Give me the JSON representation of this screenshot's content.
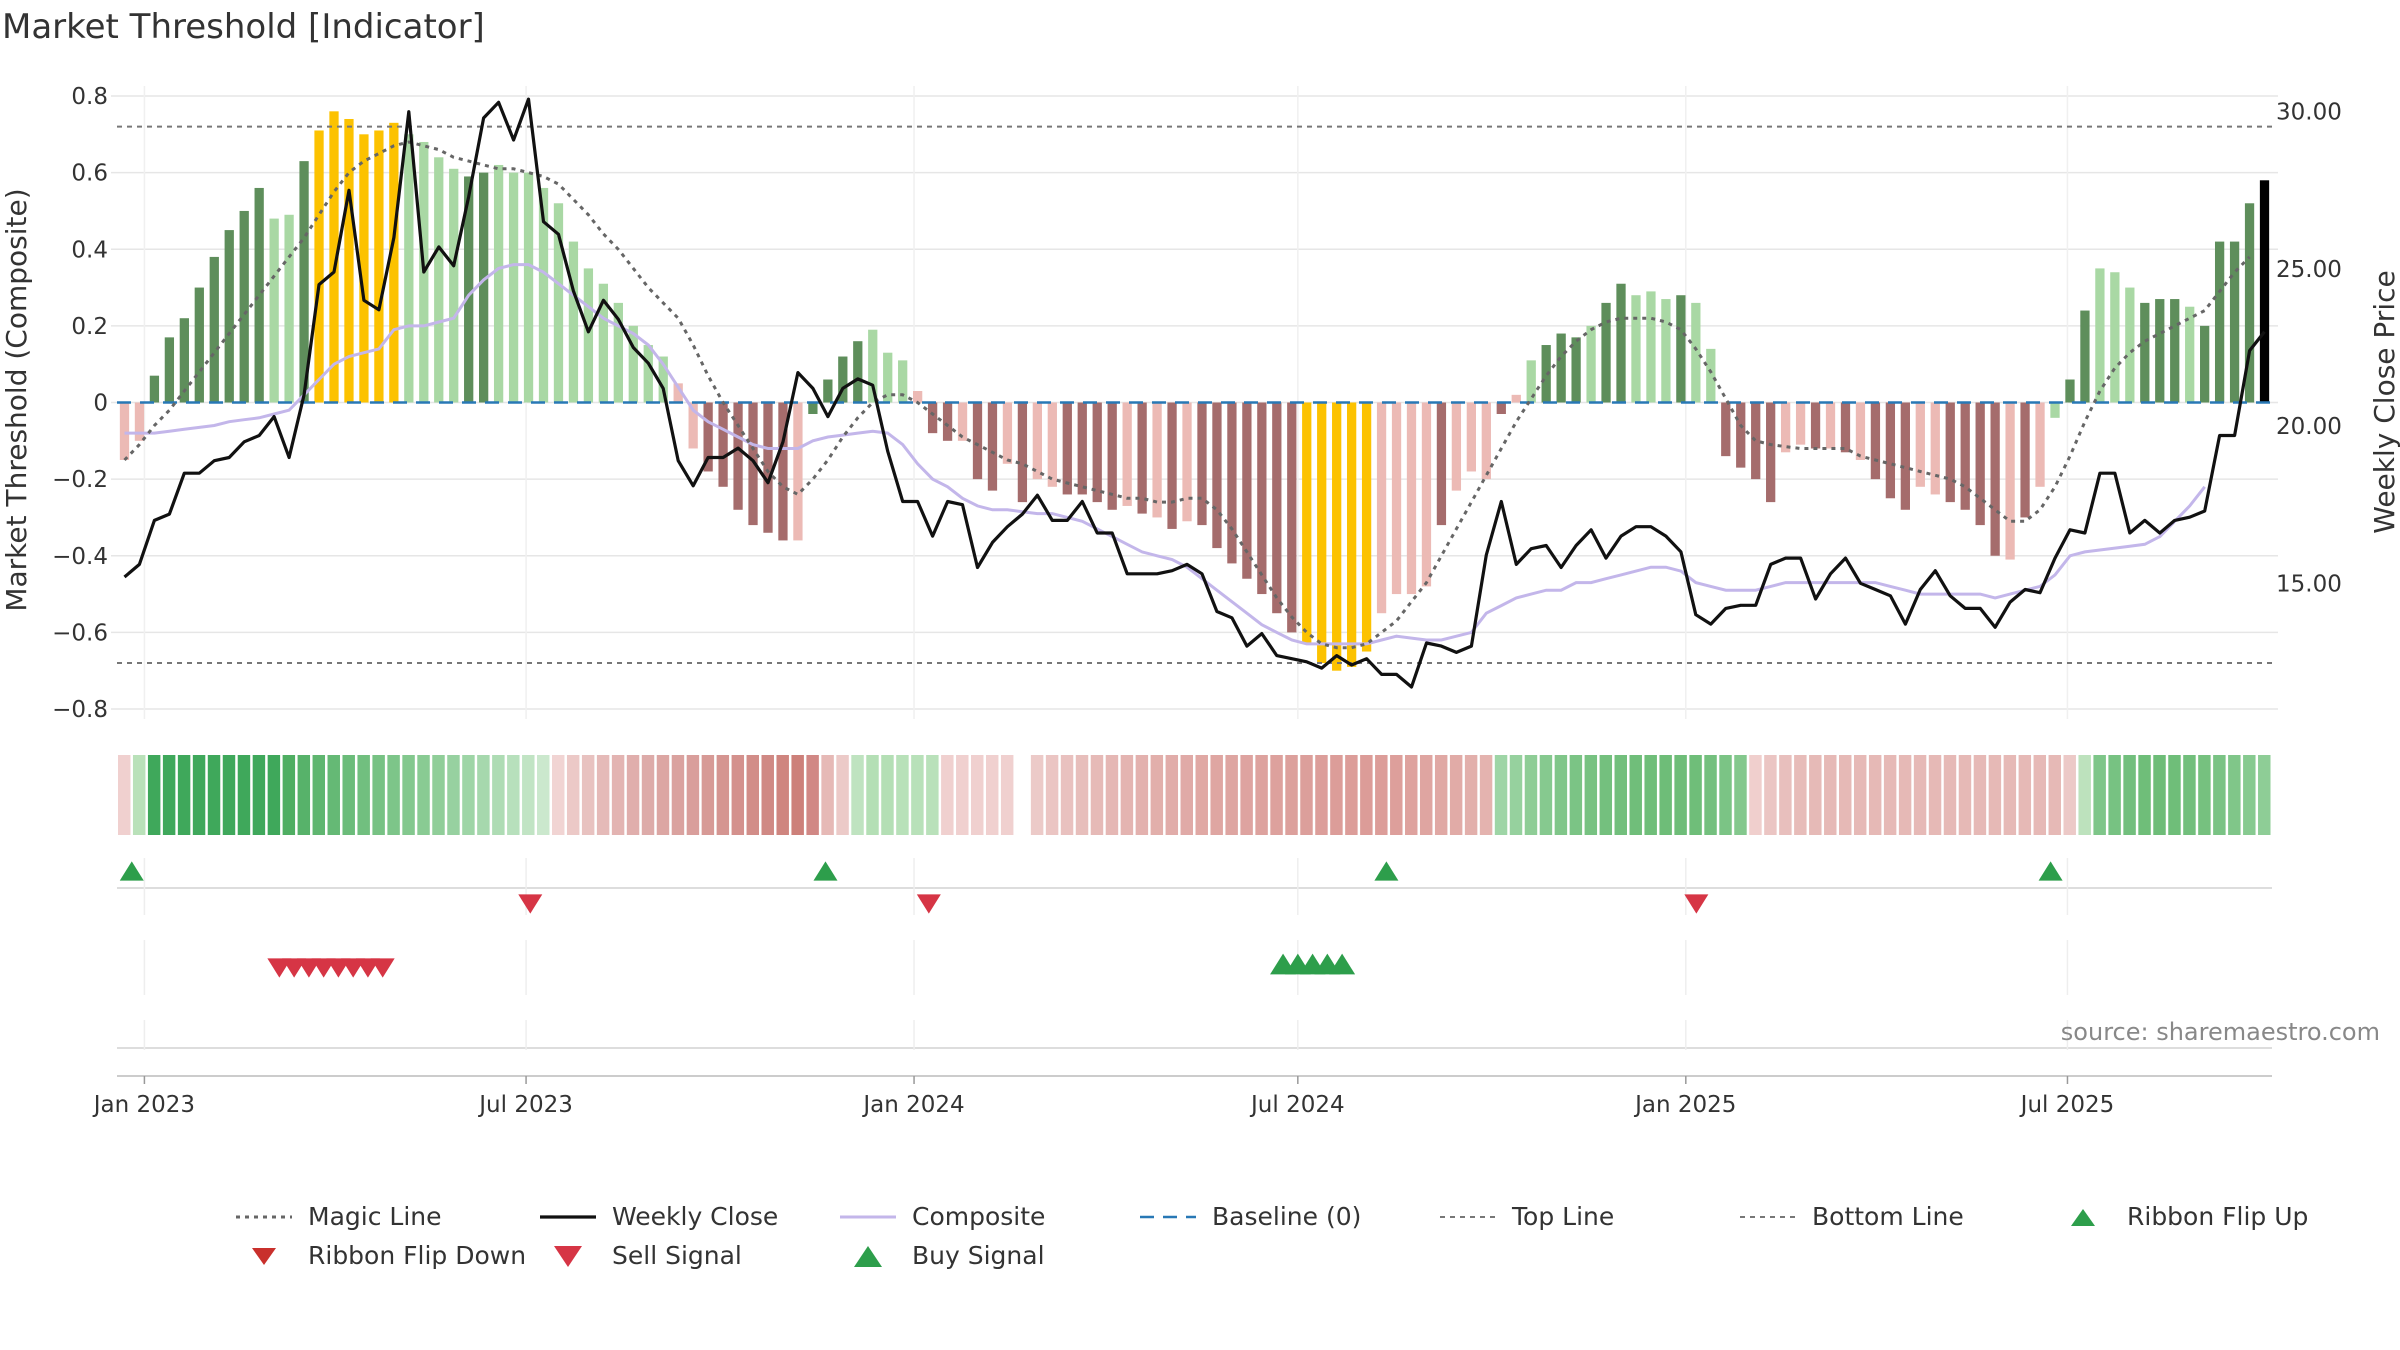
{
  "title": "Market Threshold [Indicator]",
  "source": "source: sharemaestro.com",
  "colors": {
    "dark_green": "#5e8e5b",
    "light_green": "#a9d8a4",
    "dark_red": "#a56c6c",
    "light_red": "#ecbab5",
    "gold": "#fcc200",
    "composite": "#c3b6ea",
    "weekly_close": "#111111",
    "magic_line": "#666666",
    "baseline": "#2878b5",
    "top_bottom_line": "#777777",
    "buy": "#2d9e4b",
    "sell": "#d63545"
  },
  "chart_data": {
    "type": "bar",
    "x_axis": {
      "type": "date",
      "range": [
        "2022-12-19",
        "2025-10-06"
      ],
      "ticks": [
        {
          "date": "2023-01-01",
          "label": "Jan 2023"
        },
        {
          "date": "2023-07-01",
          "label": "Jul 2023"
        },
        {
          "date": "2024-01-01",
          "label": "Jan 2024"
        },
        {
          "date": "2024-07-01",
          "label": "Jul 2024"
        },
        {
          "date": "2025-01-01",
          "label": "Jan 2025"
        },
        {
          "date": "2025-07-01",
          "label": "Jul 2025"
        }
      ]
    },
    "y_left": {
      "label": "Market Threshold (Composite)",
      "range": [
        -0.8,
        0.8
      ],
      "ticks": [
        {
          "v": 0.8,
          "label": "0.8"
        },
        {
          "v": 0.6,
          "label": "0.6"
        },
        {
          "v": 0.4,
          "label": "0.4"
        },
        {
          "v": 0.2,
          "label": "0.2"
        },
        {
          "v": 0,
          "label": "0"
        },
        {
          "v": -0.2,
          "label": "−0.2"
        },
        {
          "v": -0.4,
          "label": "−0.4"
        },
        {
          "v": -0.6,
          "label": "−0.6"
        },
        {
          "v": -0.8,
          "label": "−0.8"
        }
      ]
    },
    "y_right": {
      "label": "Weekly Close Price",
      "range": [
        11.0,
        30.5
      ],
      "ticks": [
        {
          "v": 30,
          "label": "30.00"
        },
        {
          "v": 25,
          "label": "25.00"
        },
        {
          "v": 20,
          "label": "20.00"
        },
        {
          "v": 15,
          "label": "15.00"
        }
      ]
    },
    "top_line": 0.72,
    "bottom_line": -0.68,
    "baseline": 0,
    "bar_values": [
      -0.15,
      -0.1,
      0.07,
      0.17,
      0.22,
      0.3,
      0.38,
      0.45,
      0.5,
      0.56,
      0.48,
      0.49,
      0.63,
      0.71,
      0.76,
      0.74,
      0.7,
      0.71,
      0.73,
      0.7,
      0.68,
      0.64,
      0.61,
      0.59,
      0.6,
      0.62,
      0.6,
      0.6,
      0.56,
      0.52,
      0.42,
      0.35,
      0.31,
      0.26,
      0.2,
      0.15,
      0.12,
      0.05,
      -0.12,
      -0.18,
      -0.22,
      -0.28,
      -0.32,
      -0.34,
      -0.36,
      -0.36,
      -0.03,
      0.06,
      0.12,
      0.16,
      0.19,
      0.13,
      0.11,
      0.03,
      -0.08,
      -0.1,
      -0.1,
      -0.2,
      -0.23,
      -0.16,
      -0.26,
      -0.2,
      -0.22,
      -0.24,
      -0.24,
      -0.26,
      -0.28,
      -0.27,
      -0.29,
      -0.3,
      -0.33,
      -0.31,
      -0.32,
      -0.38,
      -0.42,
      -0.46,
      -0.5,
      -0.55,
      -0.6,
      -0.63,
      -0.68,
      -0.7,
      -0.69,
      -0.65,
      -0.55,
      -0.5,
      -0.5,
      -0.48,
      -0.32,
      -0.23,
      -0.18,
      -0.2,
      -0.03,
      0.02,
      0.11,
      0.15,
      0.18,
      0.17,
      0.2,
      0.26,
      0.31,
      0.28,
      0.29,
      0.27,
      0.28,
      0.26,
      0.14,
      -0.14,
      -0.17,
      -0.2,
      -0.26,
      -0.13,
      -0.11,
      -0.12,
      -0.12,
      -0.13,
      -0.15,
      -0.2,
      -0.25,
      -0.28,
      -0.22,
      -0.24,
      -0.26,
      -0.28,
      -0.32,
      -0.4,
      -0.41,
      -0.3,
      -0.22,
      -0.04,
      0.06,
      0.24,
      0.35,
      0.34,
      0.3,
      0.26,
      0.27,
      0.27,
      0.25,
      0.2,
      0.42,
      0.42,
      0.52,
      0.58
    ],
    "bar_colors": [
      "lr",
      "lr",
      "dg",
      "dg",
      "dg",
      "dg",
      "dg",
      "dg",
      "dg",
      "dg",
      "lg",
      "lg",
      "dg",
      "gd",
      "gd",
      "gd",
      "gd",
      "gd",
      "gd",
      "lg",
      "lg",
      "lg",
      "lg",
      "dg",
      "dg",
      "lg",
      "lg",
      "lg",
      "lg",
      "lg",
      "lg",
      "lg",
      "lg",
      "lg",
      "lg",
      "lg",
      "lg",
      "lr",
      "lr",
      "dr",
      "dr",
      "dr",
      "dr",
      "dr",
      "dr",
      "lr",
      "dg",
      "dg",
      "dg",
      "dg",
      "lg",
      "lg",
      "lg",
      "lr",
      "dr",
      "dr",
      "lr",
      "dr",
      "dr",
      "lr",
      "dr",
      "lr",
      "lr",
      "dr",
      "dr",
      "dr",
      "dr",
      "lr",
      "dr",
      "lr",
      "dr",
      "lr",
      "dr",
      "dr",
      "dr",
      "dr",
      "dr",
      "dr",
      "dr",
      "gd",
      "gd",
      "gd",
      "gd",
      "gd",
      "lr",
      "lr",
      "lr",
      "lr",
      "dr",
      "lr",
      "lr",
      "lr",
      "dr",
      "lr",
      "lg",
      "dg",
      "dg",
      "dg",
      "lg",
      "dg",
      "dg",
      "lg",
      "lg",
      "lg",
      "dg",
      "lg",
      "lg",
      "dr",
      "dr",
      "dr",
      "dr",
      "lr",
      "lr",
      "dr",
      "lr",
      "dr",
      "lr",
      "dr",
      "dr",
      "dr",
      "lr",
      "lr",
      "dr",
      "dr",
      "dr",
      "dr",
      "lr",
      "dr",
      "lr",
      "lg",
      "dg",
      "dg",
      "lg",
      "lg",
      "lg",
      "dg",
      "dg",
      "dg",
      "lg",
      "dg",
      "dg",
      "dg",
      "dg"
    ],
    "series": [
      {
        "name": "Weekly Close",
        "axis": "right",
        "values": [
          15.2,
          15.6,
          17,
          17.2,
          18.5,
          18.5,
          18.9,
          19,
          19.5,
          19.7,
          20.3,
          19,
          21,
          24.5,
          24.9,
          27.5,
          24,
          23.7,
          26,
          30,
          24.9,
          25.7,
          25.1,
          27.3,
          29.8,
          30.3,
          29.1,
          30.4,
          26.5,
          26.1,
          24.3,
          23,
          24,
          23.4,
          22.5,
          22,
          21.2,
          18.9,
          18.1,
          19,
          19,
          19.3,
          18.9,
          18.2,
          19.5,
          21.7,
          21.2,
          20.3,
          21.2,
          21.5,
          21.3,
          19.2,
          17.6,
          17.6,
          16.5,
          17.6,
          17.5,
          15.5,
          16.3,
          16.8,
          17.2,
          17.8,
          17,
          17,
          17.6,
          16.6,
          16.6,
          15.3,
          15.3,
          15.3,
          15.4,
          15.6,
          15.3,
          14.1,
          13.9,
          13,
          13.4,
          12.7,
          12.6,
          12.5,
          12.3,
          12.7,
          12.4,
          12.6,
          12.1,
          12.1,
          11.7,
          13.1,
          13,
          12.8,
          13,
          15.9,
          17.6,
          15.6,
          16.1,
          16.2,
          15.5,
          16.2,
          16.7,
          15.8,
          16.5,
          16.8,
          16.8,
          16.5,
          16,
          14,
          13.7,
          14.2,
          14.3,
          14.3,
          15.6,
          15.8,
          15.8,
          14.5,
          15.3,
          15.8,
          15,
          14.8,
          14.6,
          13.7,
          14.8,
          15.4,
          14.6,
          14.2,
          14.2,
          13.6,
          14.4,
          14.8,
          14.7,
          15.8,
          16.7,
          16.6,
          18.5,
          18.5,
          16.6,
          17,
          16.6,
          17,
          17.1,
          17.3,
          19.7,
          19.7,
          22.4,
          23
        ]
      },
      {
        "name": "Composite",
        "axis": "left",
        "values": [
          -0.08,
          -0.08,
          -0.08,
          -0.075,
          -0.07,
          -0.065,
          -0.06,
          -0.05,
          -0.045,
          -0.04,
          -0.03,
          -0.02,
          0.02,
          0.06,
          0.1,
          0.12,
          0.13,
          0.14,
          0.19,
          0.2,
          0.2,
          0.21,
          0.22,
          0.28,
          0.32,
          0.35,
          0.36,
          0.36,
          0.34,
          0.31,
          0.28,
          0.25,
          0.22,
          0.2,
          0.18,
          0.15,
          0.1,
          0.04,
          -0.02,
          -0.05,
          -0.07,
          -0.09,
          -0.11,
          -0.12,
          -0.12,
          -0.12,
          -0.1,
          -0.09,
          -0.085,
          -0.08,
          -0.075,
          -0.08,
          -0.11,
          -0.16,
          -0.2,
          -0.22,
          -0.25,
          -0.27,
          -0.28,
          -0.28,
          -0.285,
          -0.29,
          -0.29,
          -0.3,
          -0.31,
          -0.33,
          -0.35,
          -0.37,
          -0.39,
          -0.4,
          -0.41,
          -0.43,
          -0.46,
          -0.49,
          -0.52,
          -0.55,
          -0.58,
          -0.6,
          -0.62,
          -0.63,
          -0.63,
          -0.63,
          -0.63,
          -0.63,
          -0.62,
          -0.61,
          -0.615,
          -0.62,
          -0.62,
          -0.61,
          -0.6,
          -0.55,
          -0.53,
          -0.51,
          -0.5,
          -0.49,
          -0.49,
          -0.47,
          -0.47,
          -0.46,
          -0.45,
          -0.44,
          -0.43,
          -0.43,
          -0.44,
          -0.47,
          -0.48,
          -0.49,
          -0.49,
          -0.49,
          -0.48,
          -0.47,
          -0.47,
          -0.47,
          -0.47,
          -0.47,
          -0.47,
          -0.47,
          -0.48,
          -0.49,
          -0.5,
          -0.5,
          -0.5,
          -0.5,
          -0.5,
          -0.51,
          -0.5,
          -0.49,
          -0.48,
          -0.45,
          -0.4,
          -0.39,
          -0.385,
          -0.38,
          -0.375,
          -0.37,
          -0.35,
          -0.31,
          -0.27,
          -0.22
        ]
      },
      {
        "name": "Magic Line",
        "axis": "left",
        "values": [
          -0.15,
          -0.11,
          -0.06,
          -0.02,
          0.03,
          0.08,
          0.13,
          0.18,
          0.23,
          0.28,
          0.33,
          0.38,
          0.43,
          0.49,
          0.55,
          0.6,
          0.63,
          0.65,
          0.67,
          0.68,
          0.67,
          0.66,
          0.64,
          0.63,
          0.62,
          0.61,
          0.61,
          0.6,
          0.59,
          0.57,
          0.53,
          0.49,
          0.44,
          0.4,
          0.35,
          0.3,
          0.26,
          0.22,
          0.15,
          0.07,
          0,
          -0.06,
          -0.12,
          -0.18,
          -0.22,
          -0.24,
          -0.2,
          -0.15,
          -0.09,
          -0.04,
          0,
          0.02,
          0.02,
          0,
          -0.03,
          -0.06,
          -0.09,
          -0.11,
          -0.13,
          -0.15,
          -0.16,
          -0.18,
          -0.2,
          -0.21,
          -0.22,
          -0.23,
          -0.24,
          -0.25,
          -0.25,
          -0.26,
          -0.26,
          -0.25,
          -0.25,
          -0.28,
          -0.33,
          -0.39,
          -0.45,
          -0.51,
          -0.56,
          -0.6,
          -0.63,
          -0.64,
          -0.64,
          -0.63,
          -0.6,
          -0.57,
          -0.52,
          -0.47,
          -0.4,
          -0.33,
          -0.26,
          -0.19,
          -0.12,
          -0.05,
          0.01,
          0.07,
          0.12,
          0.16,
          0.19,
          0.21,
          0.22,
          0.22,
          0.22,
          0.21,
          0.19,
          0.14,
          0.08,
          0.01,
          -0.06,
          -0.1,
          -0.11,
          -0.115,
          -0.12,
          -0.12,
          -0.12,
          -0.12,
          -0.14,
          -0.15,
          -0.16,
          -0.17,
          -0.18,
          -0.19,
          -0.2,
          -0.22,
          -0.25,
          -0.28,
          -0.31,
          -0.31,
          -0.28,
          -0.22,
          -0.14,
          -0.05,
          0.03,
          0.09,
          0.13,
          0.16,
          0.18,
          0.2,
          0.22,
          0.24,
          0.29,
          0.34,
          0.38
        ]
      }
    ],
    "ribbon": {
      "colors": [
        "#f0d0cf",
        "#b9e1b9",
        "#3fa85b",
        "#3fa85b",
        "#3fa85b",
        "#3fa85b",
        "#3fa85b",
        "#3fa85b",
        "#3fa85b",
        "#3fa85b",
        "#3fa85b",
        "#4fae62",
        "#57b26a",
        "#5fb670",
        "#65b975",
        "#6bbc7a",
        "#71bf7f",
        "#77c284",
        "#7dc589",
        "#83c88e",
        "#89cb93",
        "#90ce99",
        "#97d1a0",
        "#9ed5a6",
        "#a6d8ad",
        "#aedcb4",
        "#b7e0bc",
        "#c1e4c4",
        "#cbe8cd",
        "#f1d4d3",
        "#ecc9c7",
        "#e8c2c0",
        "#e5bab8",
        "#e3b4b2",
        "#e0aeac",
        "#ddaba9",
        "#dca6a3",
        "#daa29f",
        "#d99e9b",
        "#d79a96",
        "#d59591",
        "#d4918d",
        "#d28d88",
        "#d08984",
        "#cf857f",
        "#cd807a",
        "#d18885",
        "#e6b9b6",
        "#eccac8",
        "#bfe3c0",
        "#b4dfb5",
        "#b4dfb5",
        "#b8e1b9",
        "#b8e1b9",
        "#b9e1ba",
        "#f0d0cf",
        "#f0d0cf",
        "#f0d0cf",
        "#f0d0cf",
        "#f0d0cf",
        "#ffffff",
        "#eccac8",
        "#ebc5c3",
        "#e9c1bf",
        "#e7bebb",
        "#e6bab7",
        "#e5b7b4",
        "#e4b4b1",
        "#e3b1ae",
        "#e2afab",
        "#e1aca9",
        "#e0aaa7",
        "#e0a8a4",
        "#dfa6a2",
        "#dea5a1",
        "#dea3a0",
        "#dda29e",
        "#dda19d",
        "#dca09c",
        "#dc9f9b",
        "#dc9e9a",
        "#dc9d99",
        "#dc9d99",
        "#dc9c98",
        "#dc9d99",
        "#dd9f9b",
        "#dea29e",
        "#dfa5a1",
        "#e0a8a4",
        "#e1aba7",
        "#e2afab",
        "#e4b3af",
        "#9ed5a6",
        "#96d19e",
        "#8ecd96",
        "#86c98f",
        "#80c689",
        "#7bc485",
        "#77c281",
        "#74c07e",
        "#72bf7c",
        "#70be7a",
        "#6fbe79",
        "#6ebd78",
        "#6ebd78",
        "#6fbe79",
        "#74c07e",
        "#7bc485",
        "#84c88d",
        "#f0cfcd",
        "#ebc5c3",
        "#e8bfbd",
        "#e7bcb9",
        "#e6bab7",
        "#e6b9b6",
        "#e6b9b6",
        "#e6b9b6",
        "#e6b9b6",
        "#e6b9b6",
        "#e6b9b6",
        "#e6b9b6",
        "#e6b9b6",
        "#e6b9b6",
        "#e6b9b6",
        "#e6b9b6",
        "#e6b9b6",
        "#e6b9b6",
        "#e6b9b6",
        "#e6b9b6",
        "#e6b9b6",
        "#ecc9c7",
        "#bde2bd",
        "#7ec689",
        "#77c282",
        "#72bf7d",
        "#6fbe79",
        "#6ebd78",
        "#6fbe79",
        "#72bf7c",
        "#76c17f",
        "#7ac384",
        "#80c689",
        "#87ca90",
        "#8ecd96"
      ]
    },
    "signals": {
      "ribbon_flip_up": [
        "2022-12-26",
        "2023-11-20",
        "2024-08-12",
        "2025-06-23"
      ],
      "ribbon_flip_down": [
        "2023-07-03",
        "2024-01-08",
        "2025-01-06"
      ],
      "sell_signal": [
        "2023-03-06",
        "2023-03-13",
        "2023-03-20",
        "2023-03-27",
        "2023-04-03",
        "2023-04-10",
        "2023-04-17",
        "2023-04-24"
      ],
      "buy_signal": [
        "2024-06-24",
        "2024-07-01",
        "2024-07-08",
        "2024-07-15",
        "2024-07-22"
      ]
    }
  },
  "legend": [
    {
      "key": "magic",
      "label": "Magic Line"
    },
    {
      "key": "close",
      "label": "Weekly Close"
    },
    {
      "key": "composite",
      "label": "Composite"
    },
    {
      "key": "baseline",
      "label": "Baseline (0)"
    },
    {
      "key": "top",
      "label": "Top Line"
    },
    {
      "key": "bottom",
      "label": "Bottom Line"
    },
    {
      "key": "flipup",
      "label": "Ribbon Flip Up"
    },
    {
      "key": "flipdown",
      "label": "Ribbon Flip Down"
    },
    {
      "key": "sell",
      "label": "Sell Signal"
    },
    {
      "key": "buy",
      "label": "Buy Signal"
    }
  ]
}
